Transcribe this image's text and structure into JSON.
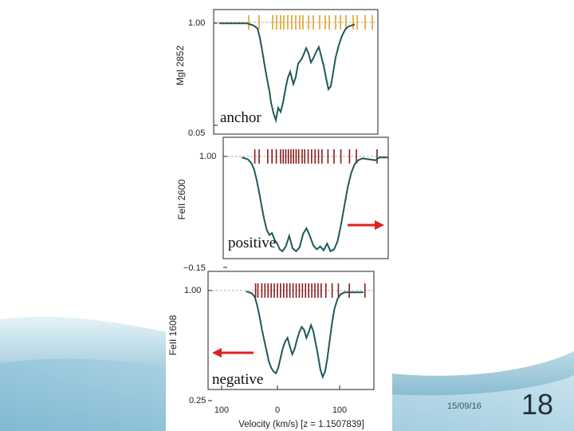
{
  "slide": {
    "date": "15/09/16",
    "number": "18"
  },
  "chart_data": [
    {
      "type": "line",
      "ylabel": "MgI 2852",
      "yticklabels": [
        "1.00",
        "0.05"
      ],
      "annotation": "anchor",
      "tick_color": "#e0a126",
      "line_color": "#1f5959",
      "components_kms": [
        -38,
        -25,
        -8,
        -3,
        2,
        6,
        11,
        16,
        21,
        26,
        30,
        37,
        43,
        51,
        58,
        63,
        71,
        77,
        84,
        93,
        98,
        108,
        117,
        124,
        146
      ],
      "profile": [
        [
          -75,
          0.99
        ],
        [
          -40,
          0.99
        ],
        [
          -32,
          0.97
        ],
        [
          -27,
          0.94
        ],
        [
          -24,
          0.85
        ],
        [
          -21,
          0.72
        ],
        [
          -18,
          0.58
        ],
        [
          -15,
          0.45
        ],
        [
          -12,
          0.33
        ],
        [
          -10,
          0.22
        ],
        [
          -7,
          0.12
        ],
        [
          -4,
          0.05
        ],
        [
          -1,
          0.17
        ],
        [
          2,
          0.13
        ],
        [
          5,
          0.22
        ],
        [
          8,
          0.35
        ],
        [
          11,
          0.46
        ],
        [
          14,
          0.52
        ],
        [
          18,
          0.4
        ],
        [
          21,
          0.47
        ],
        [
          24,
          0.6
        ],
        [
          28,
          0.64
        ],
        [
          31,
          0.69
        ],
        [
          34,
          0.75
        ],
        [
          37,
          0.7
        ],
        [
          40,
          0.61
        ],
        [
          43,
          0.65
        ],
        [
          47,
          0.72
        ],
        [
          50,
          0.76
        ],
        [
          53,
          0.67
        ],
        [
          56,
          0.58
        ],
        [
          59,
          0.46
        ],
        [
          62,
          0.35
        ],
        [
          65,
          0.38
        ],
        [
          68,
          0.52
        ],
        [
          71,
          0.66
        ],
        [
          75,
          0.78
        ],
        [
          79,
          0.87
        ],
        [
          83,
          0.93
        ],
        [
          87,
          0.96
        ],
        [
          95,
          0.98
        ],
        [
          125,
          0.99
        ]
      ]
    },
    {
      "type": "line",
      "ylabel": "FeII 2600",
      "yticklabels": [
        "1.00",
        "−0.15"
      ],
      "annotation": "positive",
      "arrow_direction": "right",
      "tick_color": "#8b1a1a",
      "line_color": "#1f5959",
      "components_kms": [
        -30,
        -25,
        -15,
        -10,
        -5,
        0,
        3,
        6,
        9,
        12,
        15,
        18,
        21,
        25,
        28,
        32,
        36,
        40,
        44,
        48,
        55,
        62,
        70,
        80,
        88,
        112
      ],
      "profile": [
        [
          -80,
          0.99
        ],
        [
          -45,
          0.99
        ],
        [
          -38,
          0.97
        ],
        [
          -34,
          0.93
        ],
        [
          -31,
          0.87
        ],
        [
          -28,
          0.76
        ],
        [
          -25,
          0.63
        ],
        [
          -22,
          0.48
        ],
        [
          -19,
          0.34
        ],
        [
          -16,
          0.23
        ],
        [
          -13,
          0.18
        ],
        [
          -10,
          0.2
        ],
        [
          -7,
          0.13
        ],
        [
          -4,
          0.09
        ],
        [
          -1,
          0.03
        ],
        [
          2,
          0.01
        ],
        [
          6,
          0.06
        ],
        [
          10,
          0.17
        ],
        [
          14,
          0.04
        ],
        [
          18,
          0.01
        ],
        [
          22,
          0.05
        ],
        [
          26,
          0.19
        ],
        [
          30,
          0.25
        ],
        [
          34,
          0.17
        ],
        [
          38,
          0.07
        ],
        [
          42,
          0.03
        ],
        [
          46,
          0.06
        ],
        [
          50,
          0.02
        ],
        [
          54,
          0.09
        ],
        [
          58,
          0.01
        ],
        [
          62,
          0.03
        ],
        [
          66,
          0.11
        ],
        [
          70,
          0.28
        ],
        [
          74,
          0.48
        ],
        [
          78,
          0.68
        ],
        [
          82,
          0.83
        ],
        [
          86,
          0.92
        ],
        [
          90,
          0.96
        ],
        [
          95,
          0.98
        ],
        [
          110,
          0.96
        ],
        [
          115,
          0.99
        ],
        [
          125,
          0.99
        ]
      ]
    },
    {
      "type": "line",
      "ylabel": "FeII 1608",
      "yticklabels": [
        "1.00",
        "0.25"
      ],
      "xticklabels": [
        "100",
        "0",
        "100"
      ],
      "xlabel": "Velocity (km/s) [z = 1.1507839]",
      "annotation": "negative",
      "arrow_direction": "left",
      "tick_color": "#8b1a1a",
      "line_color": "#1f5959",
      "components_kms": [
        -28,
        -25,
        -20,
        -16,
        -12,
        -8,
        -4,
        0,
        4,
        8,
        12,
        16,
        20,
        24,
        28,
        32,
        36,
        40,
        44,
        48,
        52,
        56,
        62,
        70,
        78,
        92,
        112
      ],
      "profile": [
        [
          -95,
          0.99
        ],
        [
          -40,
          0.99
        ],
        [
          -33,
          0.97
        ],
        [
          -29,
          0.93
        ],
        [
          -26,
          0.84
        ],
        [
          -23,
          0.72
        ],
        [
          -20,
          0.58
        ],
        [
          -17,
          0.46
        ],
        [
          -14,
          0.34
        ],
        [
          -11,
          0.22
        ],
        [
          -8,
          0.15
        ],
        [
          -5,
          0.11
        ],
        [
          -2,
          0.09
        ],
        [
          1,
          0.15
        ],
        [
          4,
          0.26
        ],
        [
          7,
          0.37
        ],
        [
          10,
          0.44
        ],
        [
          13,
          0.48
        ],
        [
          16,
          0.38
        ],
        [
          19,
          0.3
        ],
        [
          22,
          0.36
        ],
        [
          25,
          0.46
        ],
        [
          28,
          0.54
        ],
        [
          31,
          0.6
        ],
        [
          34,
          0.57
        ],
        [
          37,
          0.48
        ],
        [
          40,
          0.54
        ],
        [
          43,
          0.62
        ],
        [
          46,
          0.55
        ],
        [
          49,
          0.42
        ],
        [
          52,
          0.28
        ],
        [
          55,
          0.13
        ],
        [
          58,
          0.05
        ],
        [
          61,
          0.11
        ],
        [
          64,
          0.26
        ],
        [
          67,
          0.46
        ],
        [
          70,
          0.65
        ],
        [
          73,
          0.8
        ],
        [
          77,
          0.91
        ],
        [
          81,
          0.96
        ],
        [
          86,
          0.98
        ],
        [
          110,
          0.98
        ],
        [
          140,
          0.99
        ]
      ]
    }
  ]
}
